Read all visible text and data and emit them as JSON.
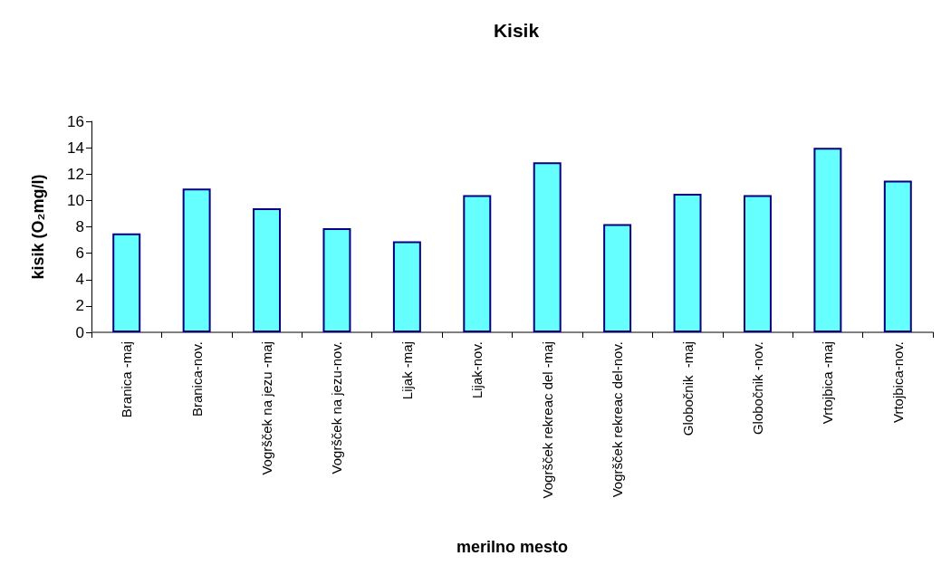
{
  "chart_data": {
    "type": "bar",
    "title": "Kisik",
    "xlabel": "merilno mesto",
    "ylabel": "kisik (O₂mg/l)",
    "categories": [
      "Branica -maj",
      "Branica-nov.",
      "Vogršček na jezu -maj",
      "Vogršček na jezu-nov.",
      "Lijak -maj",
      "Lijak-nov.",
      "Vogršček rekreac del -maj",
      "Vogršček rekreac del-nov.",
      "Globočnik  -maj",
      "Globočnik -nov.",
      "Vrtojbica -maj",
      "Vrtojbica-nov."
    ],
    "values": [
      7.5,
      10.9,
      9.4,
      7.9,
      6.9,
      10.4,
      12.9,
      8.2,
      10.5,
      10.4,
      14.0,
      11.5
    ],
    "color": "#66ffff",
    "ylim": [
      0,
      16
    ],
    "yticks": [
      0,
      2,
      4,
      6,
      8,
      10,
      12,
      14,
      16
    ],
    "grid": false
  }
}
